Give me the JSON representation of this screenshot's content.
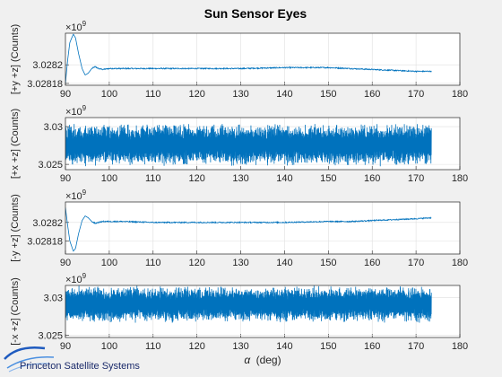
{
  "figure": {
    "title": "Sun Sensor Eyes",
    "xlabel_symbol": "α",
    "xlabel_unit": "(deg)",
    "logo_text": "Princeton Satellite Systems",
    "line_color": "#0072bd",
    "bg_color": "#f0f0f0",
    "axes_bg": "#ffffff",
    "grid_color": "#dfdfdf"
  },
  "chart_data": [
    {
      "type": "line",
      "title": "Sun Sensor Eyes",
      "xlabel": "α (deg)",
      "ylabel": "[+y +z] (Counts)",
      "exponent_base": "×10",
      "exponent_power": "9",
      "xlim": [
        90,
        180
      ],
      "ylim": [
        3.028178,
        3.028234
      ],
      "xticks": [
        "90",
        "100",
        "110",
        "120",
        "130",
        "140",
        "150",
        "160",
        "170",
        "180"
      ],
      "yticks": [
        {
          "value": 3.02818,
          "label": "3.02818"
        },
        {
          "value": 3.0282,
          "label": "3.0282"
        }
      ],
      "grid": true,
      "series": [
        {
          "kind": "transient",
          "x_range": [
            90,
            173.5
          ],
          "x": [
            90,
            90.5,
            91,
            91.8,
            92.3,
            93,
            93.8,
            94.5,
            95.2,
            96,
            96.8,
            97.5,
            98.5,
            100,
            103,
            110,
            120,
            130,
            140,
            150,
            155,
            160,
            165,
            170,
            173.5
          ],
          "y": [
            3.02818,
            3.028205,
            3.028224,
            3.028233,
            3.028229,
            3.028212,
            3.028196,
            3.028189,
            3.028191,
            3.028196,
            3.028198,
            3.028196,
            3.028195,
            3.028196,
            3.028196,
            3.028196,
            3.028196,
            3.028196,
            3.028197,
            3.028197,
            3.028196,
            3.028195,
            3.028194,
            3.028193,
            3.028193
          ],
          "noise_amplitude": 6e-07
        }
      ]
    },
    {
      "type": "line",
      "xlabel": "",
      "ylabel": "[+x +z] (Counts)",
      "exponent_base": "×10",
      "exponent_power": "9",
      "xlim": [
        90,
        180
      ],
      "ylim": [
        3.0243,
        3.0312
      ],
      "xticks": [
        "90",
        "100",
        "110",
        "120",
        "130",
        "140",
        "150",
        "160",
        "170",
        "180"
      ],
      "yticks": [
        {
          "value": 3.025,
          "label": "3.025"
        },
        {
          "value": 3.03,
          "label": "3.03"
        }
      ],
      "grid": true,
      "series": [
        {
          "kind": "oscillation",
          "x_range": [
            90,
            173.5
          ],
          "center": 3.0276,
          "amplitude": 0.0029
        }
      ]
    },
    {
      "type": "line",
      "xlabel": "",
      "ylabel": "[-y +z] (Counts)",
      "exponent_base": "×10",
      "exponent_power": "9",
      "xlim": [
        90,
        180
      ],
      "ylim": [
        3.028166,
        3.028222
      ],
      "xticks": [
        "90",
        "100",
        "110",
        "120",
        "130",
        "140",
        "150",
        "160",
        "170",
        "180"
      ],
      "yticks": [
        {
          "value": 3.02818,
          "label": "3.02818"
        },
        {
          "value": 3.0282,
          "label": "3.0282"
        }
      ],
      "grid": true,
      "series": [
        {
          "kind": "transient",
          "x_range": [
            90,
            173.5
          ],
          "x": [
            90,
            90.5,
            91,
            91.8,
            92.3,
            93,
            93.8,
            94.5,
            95.2,
            96,
            96.8,
            97.5,
            98.5,
            100,
            103,
            110,
            120,
            130,
            140,
            150,
            155,
            160,
            165,
            170,
            173.5
          ],
          "y": [
            3.028216,
            3.028197,
            3.02818,
            3.028169,
            3.028172,
            3.028188,
            3.028202,
            3.028207,
            3.028205,
            3.028201,
            3.028199,
            3.0282,
            3.028201,
            3.028201,
            3.028201,
            3.0282,
            3.0282,
            3.0282,
            3.0282,
            3.028201,
            3.028201,
            3.028202,
            3.028203,
            3.028204,
            3.028205
          ],
          "noise_amplitude": 6e-07
        }
      ]
    },
    {
      "type": "line",
      "xlabel": "α (deg)",
      "ylabel": "[-x +z] (Counts)",
      "exponent_base": "×10",
      "exponent_power": "9",
      "xlim": [
        90,
        180
      ],
      "ylim": [
        3.0247,
        3.0316
      ],
      "xticks": [
        "90",
        "100",
        "110",
        "120",
        "130",
        "140",
        "150",
        "160",
        "170",
        "180"
      ],
      "yticks": [
        {
          "value": 3.025,
          "label": "3.025"
        },
        {
          "value": 3.03,
          "label": "3.03"
        }
      ],
      "grid": true,
      "series": [
        {
          "kind": "oscillation",
          "x_range": [
            90,
            173.5
          ],
          "center": 3.0291,
          "amplitude": 0.0025
        }
      ]
    }
  ]
}
